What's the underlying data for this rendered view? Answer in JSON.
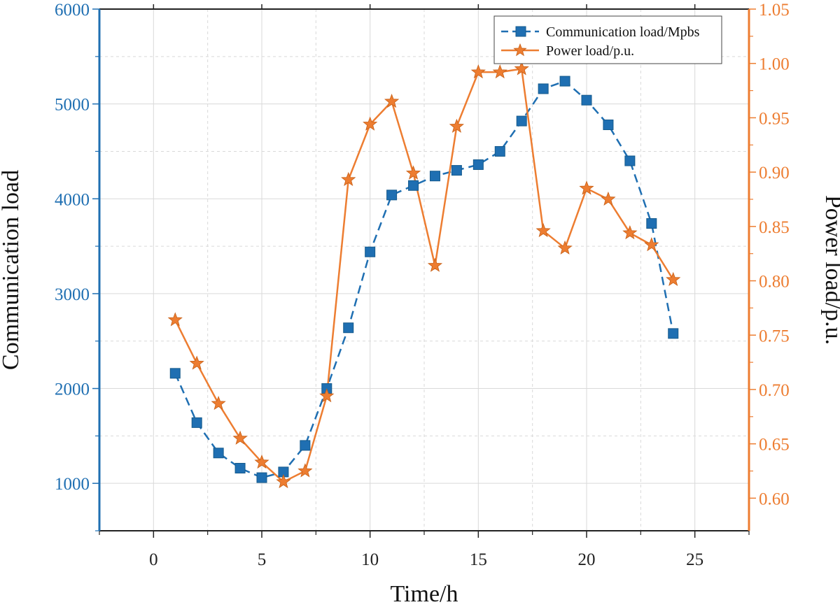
{
  "chart_data": {
    "type": "line",
    "xlabel": "Time/h",
    "ylabel": "Communication load",
    "y2label": "Power load/p.u.",
    "xlim": [
      -2.5,
      27.5
    ],
    "ylim": [
      500,
      6000
    ],
    "y2lim": [
      0.57,
      1.05
    ],
    "xticks": [
      "0",
      "5",
      "10",
      "15",
      "20",
      "25"
    ],
    "yticks": [
      "1000",
      "2000",
      "3000",
      "4000",
      "5000",
      "6000"
    ],
    "y2ticks": [
      "0.60",
      "0.65",
      "0.70",
      "0.75",
      "0.80",
      "0.85",
      "0.90",
      "0.95",
      "1.00",
      "1.05"
    ],
    "grid": true,
    "legend_position": "top-right",
    "colors": {
      "left_axis": "#1f6fb2",
      "right_axis": "#ed7d31",
      "grid": "#d9d9d9"
    },
    "series": [
      {
        "name": "Communication load/Mpbs",
        "axis": "left",
        "marker": "square",
        "line": "dashed",
        "x": [
          1,
          2,
          3,
          4,
          5,
          6,
          7,
          8,
          9,
          10,
          11,
          12,
          13,
          14,
          15,
          16,
          17,
          18,
          19,
          20,
          21,
          22,
          23,
          24
        ],
        "values": [
          2160,
          1640,
          1320,
          1160,
          1060,
          1120,
          1400,
          2000,
          2640,
          3440,
          4040,
          4140,
          4240,
          4300,
          4360,
          4500,
          4820,
          5160,
          5240,
          5040,
          4780,
          4400,
          3740,
          2580
        ]
      },
      {
        "name": "Power load/p.u.",
        "axis": "right",
        "marker": "star",
        "line": "solid",
        "x": [
          1,
          2,
          3,
          4,
          5,
          6,
          7,
          8,
          9,
          10,
          11,
          12,
          13,
          14,
          15,
          16,
          17,
          18,
          19,
          20,
          21,
          22,
          23,
          24
        ],
        "values": [
          0.764,
          0.724,
          0.687,
          0.655,
          0.633,
          0.615,
          0.625,
          0.694,
          0.893,
          0.944,
          0.965,
          0.899,
          0.814,
          0.942,
          0.992,
          0.992,
          0.995,
          0.846,
          0.83,
          0.885,
          0.875,
          0.844,
          0.833,
          0.801
        ]
      }
    ]
  }
}
